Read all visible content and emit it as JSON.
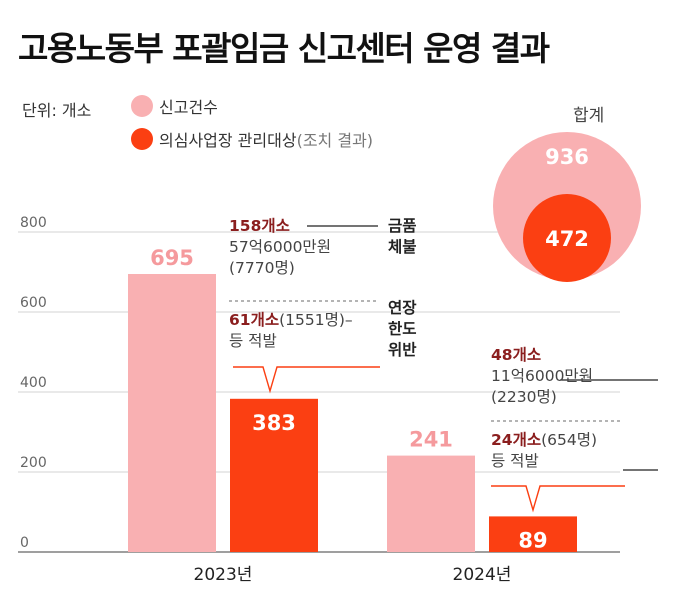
{
  "title": "고용노동부 포괄임금 신고센터 운영 결과",
  "legend": {
    "unit": "단위: 개소",
    "reports": "신고건수",
    "inspected": "의심사업장 관리대상",
    "inspected_note": "(조치 결과)",
    "reports_color": "#f9b0b2",
    "inspected_color": "#fb3f12"
  },
  "total": {
    "label": "합계",
    "reports": "936",
    "inspected": "472"
  },
  "annotations": {
    "y2023": {
      "wage_count": "158개소",
      "wage_amount": "57억6000만원",
      "wage_people": "(7770명)",
      "violation_count": "61개소",
      "violation_people": "(1551명)–",
      "violation_suffix": "등 적발"
    },
    "y2024": {
      "wage_count": "48개소",
      "wage_amount": "11억6000만원",
      "wage_people": "(2230명)",
      "violation_count": "24개소",
      "violation_people": "(654명)",
      "violation_suffix": "등 적발"
    },
    "side_wage_line1": "금품",
    "side_wage_line2": "체불",
    "side_violation_line1": "연장",
    "side_violation_line2": "한도",
    "side_violation_line3": "위반"
  },
  "chart_data": {
    "type": "bar",
    "categories": [
      "2023년",
      "2024년"
    ],
    "series": [
      {
        "name": "신고건수",
        "values": [
          695,
          241
        ],
        "color": "#f9b0b2"
      },
      {
        "name": "의심사업장 관리대상",
        "values": [
          383,
          89
        ],
        "color": "#fb3f12"
      }
    ],
    "ylim": [
      0,
      800
    ],
    "yticks": [
      0,
      200,
      400,
      600,
      800
    ],
    "grid": true,
    "legend": "top-left"
  }
}
